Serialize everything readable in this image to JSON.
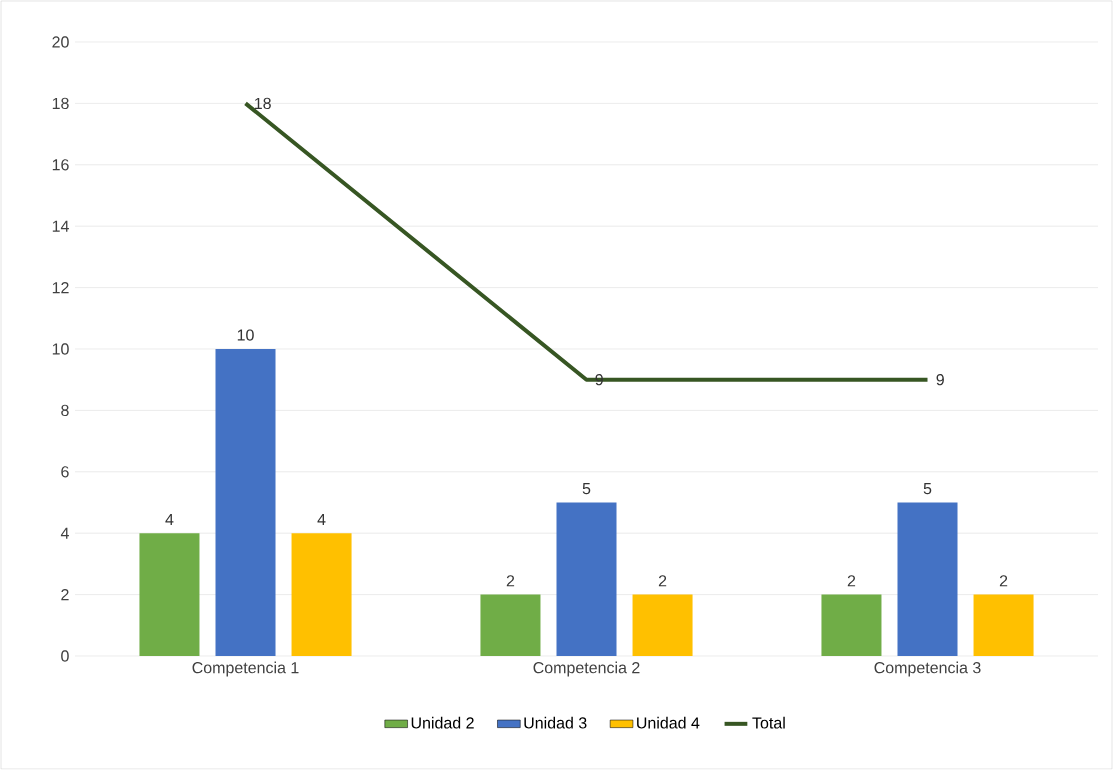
{
  "chart_data": {
    "type": "bar",
    "categories": [
      "Competencia 1",
      "Competencia 2",
      "Competencia 3"
    ],
    "series": [
      {
        "name": "Unidad 2",
        "color": "#70ad47",
        "values": [
          4,
          2,
          2
        ]
      },
      {
        "name": "Unidad 3",
        "color": "#4472c4",
        "values": [
          10,
          5,
          5
        ]
      },
      {
        "name": "Unidad 4",
        "color": "#ffc000",
        "values": [
          4,
          2,
          2
        ]
      },
      {
        "name": "Total",
        "type": "line",
        "color": "#375623",
        "values": [
          18,
          9,
          9
        ]
      }
    ],
    "ylim": [
      0,
      20
    ],
    "yticks": [
      0,
      2,
      4,
      6,
      8,
      10,
      12,
      14,
      16,
      18,
      20
    ],
    "grid": "y",
    "legend": "bottom",
    "data_labels": true
  }
}
